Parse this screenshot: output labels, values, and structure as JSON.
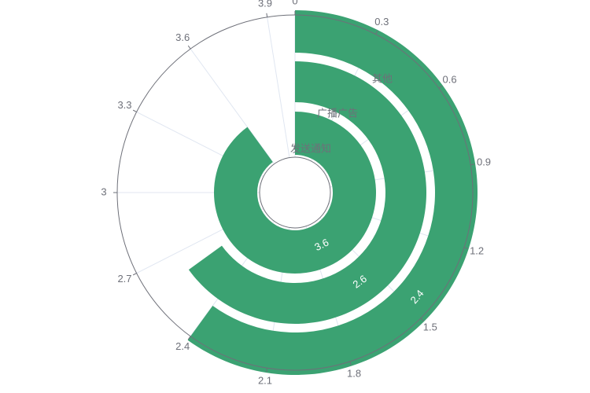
{
  "chart_data": {
    "type": "bar",
    "subtype": "polar-radial-bar",
    "categories": [
      "发送通知",
      "广播广告",
      "其他"
    ],
    "values": [
      3.6,
      2.6,
      2.4
    ],
    "angle_axis": {
      "min": 0,
      "max": 4,
      "ticks": [
        0,
        0.3,
        0.6,
        0.9,
        1.2,
        1.5,
        1.8,
        2.1,
        2.4,
        2.7,
        3,
        3.3,
        3.6,
        3.9
      ],
      "tick_labels": [
        "0",
        "0.3",
        "0.6",
        "0.9",
        "1.2",
        "1.5",
        "1.8",
        "2.1",
        "2.4",
        "2.7",
        "3",
        "3.3",
        "3.6",
        "3.9"
      ],
      "direction": "clockwise",
      "start": "top"
    },
    "data_labels": [
      "3.6",
      "2.6",
      "2.4"
    ],
    "grid": true,
    "colors": {
      "bar": "#3ba272",
      "axis": "#6e7079",
      "grid": "#e0e6f1"
    }
  }
}
